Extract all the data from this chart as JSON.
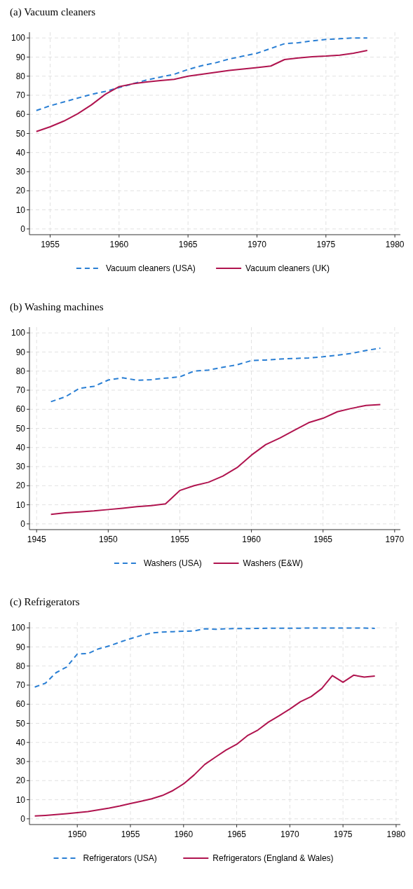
{
  "chart_data": [
    {
      "type": "line",
      "title": "(a) Vacuum cleaners",
      "x": [
        1954,
        1955,
        1956,
        1957,
        1958,
        1959,
        1960,
        1961,
        1962,
        1963,
        1964,
        1965,
        1966,
        1967,
        1968,
        1969,
        1970,
        1971,
        1972,
        1973,
        1974,
        1975,
        1976,
        1977,
        1978
      ],
      "xlim": [
        1953.5,
        1980.4
      ],
      "xticks": [
        1955,
        1960,
        1965,
        1970,
        1975,
        1980
      ],
      "ylim": [
        -3,
        103
      ],
      "yticks": [
        0,
        10,
        20,
        30,
        40,
        50,
        60,
        70,
        80,
        90,
        100
      ],
      "grid": true,
      "legend": "bottom",
      "series": [
        {
          "name": "Vacuum cleaners (USA)",
          "color": "#2a7fd4",
          "line_style": "dashed",
          "values": [
            62,
            64.5,
            66.5,
            68.5,
            70.5,
            72,
            74,
            76,
            78,
            79.5,
            81,
            83.5,
            85.5,
            87,
            89,
            90.5,
            92,
            94.5,
            97,
            97.5,
            98.5,
            99.2,
            99.6,
            100,
            100
          ]
        },
        {
          "name": "Vacuum cleaners (UK)",
          "color": "#b0144f",
          "line_style": "solid",
          "values": [
            51,
            53.5,
            56.5,
            60.3,
            65,
            70.5,
            74.5,
            76,
            77,
            77.7,
            78.3,
            80,
            81,
            82,
            83,
            83.7,
            84.5,
            85.3,
            88.7,
            89.5,
            90.2,
            90.5,
            91,
            92,
            93.5
          ]
        }
      ]
    },
    {
      "type": "line",
      "title": "(b) Washing machines",
      "x": [
        1946,
        1947,
        1948,
        1949,
        1950,
        1951,
        1952,
        1953,
        1954,
        1955,
        1956,
        1957,
        1958,
        1959,
        1960,
        1961,
        1962,
        1963,
        1964,
        1965,
        1966,
        1967,
        1968,
        1969
      ],
      "xlim": [
        1944.5,
        1970.4
      ],
      "xticks": [
        1945,
        1950,
        1955,
        1960,
        1965,
        1970
      ],
      "ylim": [
        -3,
        103
      ],
      "yticks": [
        0,
        10,
        20,
        30,
        40,
        50,
        60,
        70,
        80,
        90,
        100
      ],
      "grid": true,
      "legend": "bottom",
      "series": [
        {
          "name": "Washers (USA)",
          "color": "#2a7fd4",
          "line_style": "dashed",
          "values": [
            64,
            66.5,
            71,
            72,
            75.3,
            76.5,
            75.2,
            75.5,
            76.3,
            77,
            80,
            80.5,
            82,
            83.3,
            85.5,
            85.8,
            86.3,
            86.6,
            86.9,
            87.5,
            88.3,
            89.3,
            90.8,
            92
          ]
        },
        {
          "name": "Washers (E&W)",
          "color": "#b0144f",
          "line_style": "solid",
          "values": [
            5,
            5.8,
            6.3,
            6.8,
            7.5,
            8.2,
            9,
            9.6,
            10.5,
            17.5,
            20,
            21.8,
            25,
            29.5,
            36,
            41.5,
            45,
            49,
            53,
            55.3,
            58.7,
            60.5,
            62,
            62.5
          ]
        }
      ]
    },
    {
      "type": "line",
      "title": "(c) Refrigerators",
      "x": [
        1946,
        1947,
        1948,
        1949,
        1950,
        1951,
        1952,
        1953,
        1954,
        1955,
        1956,
        1957,
        1958,
        1959,
        1960,
        1961,
        1962,
        1963,
        1964,
        1965,
        1966,
        1967,
        1968,
        1969,
        1970,
        1971,
        1972,
        1973,
        1974,
        1975,
        1976,
        1977,
        1978
      ],
      "xlim": [
        1945.5,
        1980.4
      ],
      "xticks": [
        1950,
        1955,
        1960,
        1965,
        1970,
        1975,
        1980
      ],
      "ylim": [
        -3,
        103
      ],
      "yticks": [
        0,
        10,
        20,
        30,
        40,
        50,
        60,
        70,
        80,
        90,
        100
      ],
      "grid": true,
      "legend": "bottom",
      "series": [
        {
          "name": "Refrigerators (USA)",
          "color": "#2a7fd4",
          "line_style": "dashed",
          "values": [
            69,
            71,
            76.5,
            79.5,
            86.3,
            86.5,
            89,
            90.5,
            92.5,
            94.3,
            96,
            97.3,
            97.8,
            98,
            98.2,
            98.4,
            99.5,
            99.2,
            99.5,
            99.6,
            99.6,
            99.7,
            99.8,
            99.8,
            99.8,
            99.8,
            99.9,
            99.9,
            99.9,
            99.9,
            99.9,
            99.9,
            99.7
          ]
        },
        {
          "name": "Refrigerators (England & Wales)",
          "color": "#b0144f",
          "line_style": "solid",
          "values": [
            1.5,
            1.8,
            2.2,
            2.7,
            3.2,
            3.8,
            4.7,
            5.6,
            6.7,
            8,
            9.2,
            10.5,
            12.2,
            14.8,
            18.3,
            23,
            28.5,
            32.3,
            36,
            39,
            43.5,
            46.5,
            50.7,
            54,
            57.5,
            61.3,
            64,
            68.2,
            75,
            71.5,
            75.2,
            74.2,
            74.8
          ]
        }
      ]
    }
  ]
}
